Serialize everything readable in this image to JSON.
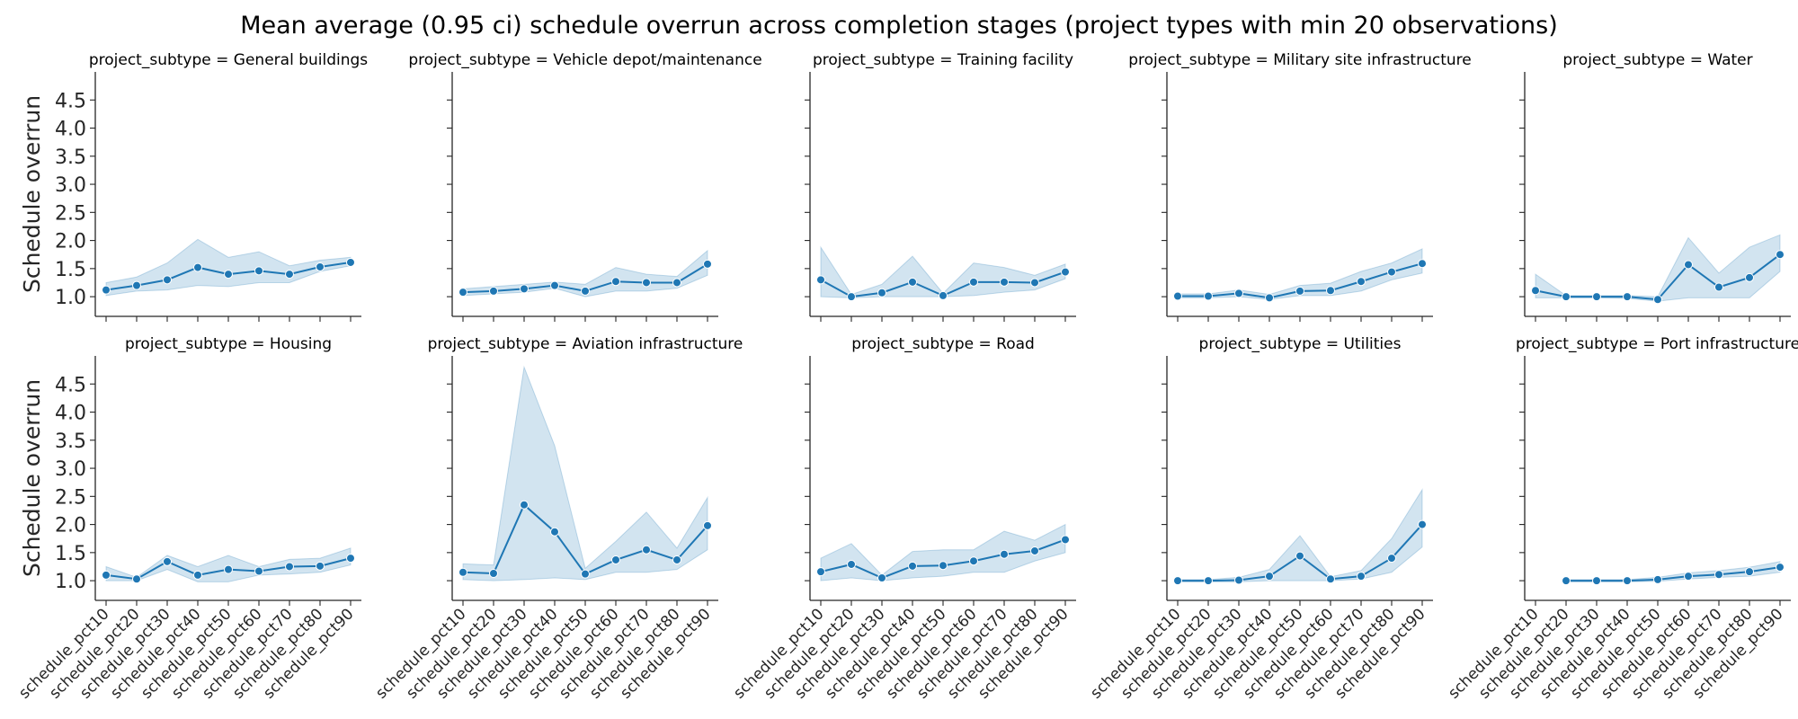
{
  "chart_data": {
    "type": "line",
    "title": "Mean average (0.95 ci) schedule overrun across completion stages (project types with min 20 observations)",
    "ylabel": "Schedule overrun",
    "xlabel": "",
    "categories": [
      "schedule_pct10",
      "schedule_pct20",
      "schedule_pct30",
      "schedule_pct40",
      "schedule_pct50",
      "schedule_pct60",
      "schedule_pct70",
      "schedule_pct80",
      "schedule_pct90"
    ],
    "yticks": [
      1.0,
      1.5,
      2.0,
      2.5,
      3.0,
      3.5,
      4.0,
      4.5
    ],
    "ytick_labels": [
      "1.0",
      "1.5",
      "2.0",
      "2.5",
      "3.0",
      "3.5",
      "4.0",
      "4.5"
    ],
    "ylim": [
      0.65,
      5.0
    ],
    "grid": false,
    "legend": "none",
    "color": "#1f77b4",
    "panels": [
      {
        "title": "project_subtype = General buildings",
        "values": [
          1.12,
          1.2,
          1.3,
          1.52,
          1.4,
          1.46,
          1.4,
          1.53,
          1.61
        ],
        "ci_low": [
          1.02,
          1.1,
          1.12,
          1.2,
          1.18,
          1.25,
          1.25,
          1.45,
          1.55
        ],
        "ci_high": [
          1.25,
          1.35,
          1.6,
          2.02,
          1.7,
          1.8,
          1.55,
          1.65,
          1.7
        ]
      },
      {
        "title": "project_subtype = Vehicle depot/maintenance",
        "values": [
          1.08,
          1.1,
          1.14,
          1.2,
          1.1,
          1.27,
          1.25,
          1.25,
          1.58
        ],
        "ci_low": [
          1.02,
          1.05,
          1.08,
          1.15,
          1.0,
          1.1,
          1.1,
          1.15,
          1.38
        ],
        "ci_high": [
          1.14,
          1.18,
          1.22,
          1.26,
          1.22,
          1.52,
          1.4,
          1.36,
          1.82
        ]
      },
      {
        "title": "project_subtype = Training facility",
        "values": [
          1.3,
          1.0,
          1.07,
          1.26,
          1.02,
          1.26,
          1.26,
          1.25,
          1.44
        ],
        "ci_low": [
          1.0,
          0.98,
          1.0,
          1.0,
          1.0,
          1.02,
          1.08,
          1.12,
          1.32
        ],
        "ci_high": [
          1.88,
          1.04,
          1.22,
          1.72,
          1.06,
          1.6,
          1.52,
          1.38,
          1.58
        ]
      },
      {
        "title": "project_subtype = Military site infrastructure",
        "values": [
          1.01,
          1.01,
          1.06,
          0.98,
          1.1,
          1.11,
          1.27,
          1.44,
          1.59
        ],
        "ci_low": [
          0.98,
          0.98,
          1.0,
          0.95,
          1.02,
          1.02,
          1.1,
          1.3,
          1.42
        ],
        "ci_high": [
          1.05,
          1.05,
          1.12,
          1.04,
          1.2,
          1.24,
          1.45,
          1.6,
          1.85
        ]
      },
      {
        "title": "project_subtype = Water",
        "values": [
          1.11,
          1.0,
          1.0,
          1.0,
          0.95,
          1.57,
          1.17,
          1.34,
          1.75
        ],
        "ci_low": [
          0.98,
          0.98,
          0.98,
          0.97,
          0.92,
          0.98,
          0.98,
          0.98,
          1.45
        ],
        "ci_high": [
          1.4,
          1.02,
          1.02,
          1.02,
          1.0,
          2.05,
          1.42,
          1.88,
          2.1
        ]
      },
      {
        "title": "project_subtype = Housing",
        "values": [
          1.1,
          1.03,
          1.34,
          1.1,
          1.2,
          1.17,
          1.25,
          1.26,
          1.4
        ],
        "ci_low": [
          1.0,
          1.0,
          1.2,
          0.98,
          0.98,
          1.1,
          1.12,
          1.15,
          1.28
        ],
        "ci_high": [
          1.25,
          1.06,
          1.45,
          1.25,
          1.45,
          1.25,
          1.38,
          1.4,
          1.58
        ]
      },
      {
        "title": "project_subtype = Aviation infrastructure",
        "values": [
          1.15,
          1.13,
          2.35,
          1.87,
          1.12,
          1.37,
          1.55,
          1.37,
          1.98
        ],
        "ci_low": [
          1.02,
          1.0,
          1.02,
          1.05,
          1.02,
          1.15,
          1.15,
          1.2,
          1.55
        ],
        "ci_high": [
          1.3,
          1.28,
          4.8,
          3.4,
          1.22,
          1.7,
          2.22,
          1.58,
          2.48
        ]
      },
      {
        "title": "project_subtype = Road",
        "values": [
          1.16,
          1.29,
          1.05,
          1.26,
          1.27,
          1.35,
          1.47,
          1.53,
          1.73
        ],
        "ci_low": [
          1.0,
          1.05,
          1.0,
          1.05,
          1.08,
          1.15,
          1.15,
          1.35,
          1.5
        ],
        "ci_high": [
          1.4,
          1.66,
          1.1,
          1.52,
          1.55,
          1.55,
          1.88,
          1.72,
          2.0
        ]
      },
      {
        "title": "project_subtype = Utilities",
        "values": [
          1.0,
          1.0,
          1.01,
          1.08,
          1.44,
          1.03,
          1.08,
          1.4,
          2.0
        ],
        "ci_low": [
          0.98,
          0.98,
          0.98,
          1.0,
          1.0,
          1.0,
          1.03,
          1.15,
          1.6
        ],
        "ci_high": [
          1.02,
          1.02,
          1.06,
          1.2,
          1.8,
          1.07,
          1.18,
          1.75,
          2.62
        ]
      },
      {
        "title": "project_subtype = Port infrastructure",
        "values": [
          null,
          1.0,
          1.0,
          1.0,
          1.02,
          1.08,
          1.11,
          1.16,
          1.24
        ],
        "ci_low": [
          null,
          0.98,
          0.98,
          0.98,
          0.99,
          1.03,
          1.06,
          1.08,
          1.15
        ],
        "ci_high": [
          null,
          1.02,
          1.02,
          1.02,
          1.06,
          1.14,
          1.18,
          1.24,
          1.34
        ]
      }
    ]
  }
}
